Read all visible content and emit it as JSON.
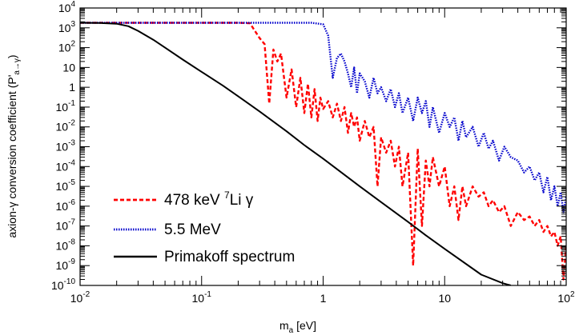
{
  "chart_data": {
    "type": "line",
    "xlabel": "m",
    "xlabel_sub": "a",
    "xlabel_unit": "[eV]",
    "ylabel": "axion-γ conversion coefficient (P'",
    "ylabel_sub": "a→γ",
    "ylabel_close": ")",
    "x_scale": "log",
    "y_scale": "log",
    "xlim": [
      0.01,
      100
    ],
    "ylim": [
      1e-10,
      10000
    ],
    "grid": false,
    "legend_placement": "bottom-left",
    "x_ticks": [
      {
        "value": 0.01,
        "base": "10",
        "exp": "-2"
      },
      {
        "value": 0.1,
        "base": "10",
        "exp": "-1"
      },
      {
        "value": 1,
        "base": "1",
        "exp": ""
      },
      {
        "value": 10,
        "base": "10",
        "exp": ""
      },
      {
        "value": 100,
        "base": "10",
        "exp": "2"
      }
    ],
    "y_ticks": [
      {
        "value": 10000,
        "base": "10",
        "exp": "4"
      },
      {
        "value": 1000,
        "base": "10",
        "exp": "3"
      },
      {
        "value": 100,
        "base": "10",
        "exp": "2"
      },
      {
        "value": 10,
        "base": "10",
        "exp": ""
      },
      {
        "value": 1,
        "base": "1",
        "exp": ""
      },
      {
        "value": 0.1,
        "base": "10",
        "exp": "-1"
      },
      {
        "value": 0.01,
        "base": "10",
        "exp": "-2"
      },
      {
        "value": 0.001,
        "base": "10",
        "exp": "-3"
      },
      {
        "value": 0.0001,
        "base": "10",
        "exp": "-4"
      },
      {
        "value": 1e-05,
        "base": "10",
        "exp": "-5"
      },
      {
        "value": 1e-06,
        "base": "10",
        "exp": "-6"
      },
      {
        "value": 1e-07,
        "base": "10",
        "exp": "-7"
      },
      {
        "value": 1e-08,
        "base": "10",
        "exp": "-8"
      },
      {
        "value": 1e-09,
        "base": "10",
        "exp": "-9"
      },
      {
        "value": 1e-10,
        "base": "10",
        "exp": "-10"
      }
    ],
    "series": [
      {
        "name": "478 keV ⁷Li γ",
        "legend": {
          "pre": "478 keV ",
          "sup": "7",
          "post": "Li γ"
        },
        "color": "#ff0000",
        "style": "dashed",
        "x": [
          0.01,
          0.05,
          0.1,
          0.15,
          0.2,
          0.25,
          0.3,
          0.33,
          0.36,
          0.39,
          0.42,
          0.45,
          0.5,
          0.55,
          0.6,
          0.65,
          0.7,
          0.75,
          0.8,
          0.85,
          0.9,
          0.95,
          1.0,
          1.1,
          1.2,
          1.3,
          1.4,
          1.5,
          1.6,
          1.7,
          1.8,
          1.9,
          2.0,
          2.2,
          2.4,
          2.6,
          2.8,
          3.0,
          3.3,
          3.6,
          3.9,
          4.2,
          4.5,
          5.0,
          5.5,
          6.0,
          6.5,
          7.0,
          7.5,
          8.0,
          9.0,
          10,
          11,
          12,
          13,
          14,
          15,
          17,
          19,
          21,
          23,
          25,
          28,
          31,
          35,
          40,
          45,
          50,
          55,
          60,
          65,
          70,
          75,
          80,
          85,
          90,
          95,
          100
        ],
        "y": [
          1800,
          1800,
          1800,
          1800,
          1800,
          1700,
          300,
          150,
          0.15,
          80,
          20,
          50,
          0.3,
          8,
          0.1,
          3,
          0.05,
          1.5,
          0.03,
          0.8,
          0.02,
          0.3,
          0.08,
          0.2,
          0.03,
          0.15,
          0.02,
          0.1,
          0.005,
          0.05,
          0.01,
          0.03,
          0.002,
          0.02,
          0.003,
          0.01,
          1e-05,
          0.003,
          0.0005,
          0.002,
          0.0001,
          0.001,
          1e-05,
          0.0005,
          1e-09,
          0.0008,
          1e-07,
          0.0002,
          1e-05,
          0.0003,
          1e-05,
          0.0001,
          1e-06,
          1e-05,
          2e-07,
          1e-05,
          1e-06,
          1e-05,
          3e-06,
          5e-06,
          1e-06,
          2e-06,
          5e-07,
          1e-06,
          1e-07,
          5e-07,
          2e-07,
          3e-07,
          1e-07,
          2e-07,
          5e-08,
          1e-07,
          3e-08,
          5e-08,
          1e-08,
          3e-08,
          2e-10,
          1e-08
        ]
      },
      {
        "name": "5.5 MeV",
        "legend": {
          "pre": "5.5 MeV",
          "sup": "",
          "post": ""
        },
        "color": "#0000cc",
        "style": "dotted",
        "x": [
          0.01,
          0.1,
          0.5,
          0.8,
          1.0,
          1.1,
          1.2,
          1.3,
          1.4,
          1.5,
          1.6,
          1.7,
          1.8,
          1.9,
          2.0,
          2.2,
          2.4,
          2.6,
          2.8,
          3.0,
          3.3,
          3.6,
          3.9,
          4.2,
          4.5,
          5.0,
          5.5,
          6.0,
          6.5,
          7.0,
          7.5,
          8.0,
          9.0,
          10,
          11,
          12,
          13,
          14,
          15,
          17,
          19,
          21,
          23,
          25,
          28,
          31,
          35,
          40,
          45,
          50,
          55,
          60,
          65,
          70,
          75,
          80,
          85,
          90,
          95,
          100
        ],
        "y": [
          1800,
          1800,
          1800,
          1800,
          1500,
          400,
          3,
          30,
          50,
          20,
          5,
          1,
          10,
          0.5,
          5,
          2,
          0.3,
          3,
          0.5,
          1,
          0.2,
          0.8,
          0.1,
          0.5,
          0.05,
          0.3,
          0.02,
          0.3,
          0.05,
          0.2,
          0.01,
          0.1,
          0.005,
          0.05,
          0.01,
          0.03,
          0.002,
          0.02,
          0.003,
          0.01,
          0.001,
          0.005,
          0.0008,
          0.002,
          0.0002,
          0.001,
          0.0003,
          0.0002,
          5e-05,
          0.0001,
          2e-05,
          5e-05,
          5e-06,
          3e-05,
          2e-06,
          1e-05,
          1e-06,
          5e-06,
          5e-07,
          3e-06
        ]
      },
      {
        "name": "Primakoff spectrum",
        "legend": {
          "pre": "Primakoff spectrum",
          "sup": "",
          "post": ""
        },
        "color": "#000000",
        "style": "solid",
        "x": [
          0.01,
          0.015,
          0.02,
          0.025,
          0.03,
          0.04,
          0.05,
          0.07,
          0.1,
          0.15,
          0.2,
          0.3,
          0.5,
          0.7,
          1,
          2,
          3,
          5,
          7,
          10,
          20,
          30,
          35
        ],
        "y": [
          1800,
          1750,
          1600,
          1200,
          700,
          250,
          100,
          25,
          6,
          1.2,
          0.35,
          0.06,
          0.006,
          0.0012,
          0.00025,
          1e-05,
          1.6e-06,
          1.6e-07,
          3.4e-08,
          7e-09,
          3.5e-10,
          1.3e-10,
          1e-10
        ]
      }
    ]
  }
}
